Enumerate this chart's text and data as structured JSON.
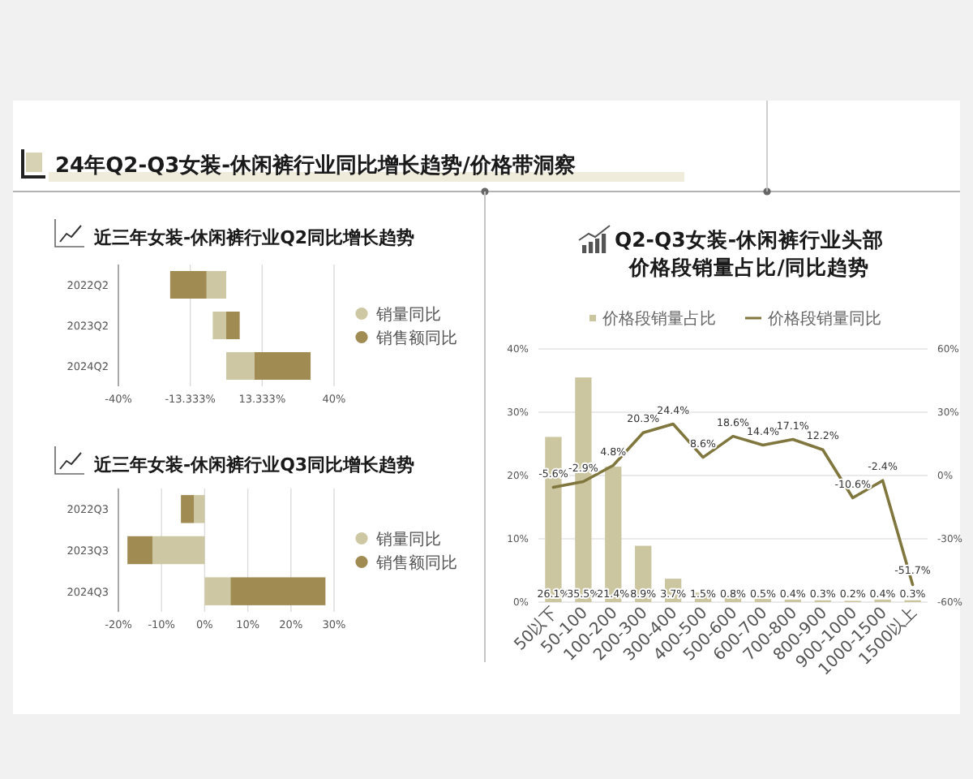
{
  "chart_data": [
    {
      "type": "other",
      "title": "24年Q2-Q3女装-休闲裤行业同比增长趋势/价格带洞察"
    },
    {
      "type": "bar",
      "orientation": "horizontal",
      "stacked": true,
      "title": "近三年女装-休闲裤行业Q2同比增长趋势",
      "categories": [
        "2022Q2",
        "2023Q2",
        "2024Q2"
      ],
      "series": [
        {
          "name": "销量同比",
          "color": "#cdc7a3",
          "values": [
            -7.3,
            -5.0,
            10.5
          ]
        },
        {
          "name": "销售额同比",
          "color": "#a08b53",
          "values": [
            -13.5,
            5.0,
            20.8
          ]
        }
      ],
      "xlim": [
        -40,
        40
      ],
      "xticks": [
        {
          "value": -40,
          "label": "-40%"
        },
        {
          "value": -13.333,
          "label": "-13.333%"
        },
        {
          "value": 13.333,
          "label": "13.333%"
        },
        {
          "value": 40,
          "label": "40%"
        }
      ],
      "grid": "x",
      "legend": "right"
    },
    {
      "type": "bar",
      "orientation": "horizontal",
      "stacked": true,
      "title": "近三年女装-休闲裤行业Q3同比增长趋势",
      "categories": [
        "2022Q3",
        "2023Q3",
        "2024Q3"
      ],
      "series": [
        {
          "name": "销量同比",
          "color": "#cdc7a3",
          "values": [
            -2.5,
            -12.1,
            6.0
          ]
        },
        {
          "name": "销售额同比",
          "color": "#a08b53",
          "values": [
            -3.0,
            -5.8,
            22.0
          ]
        }
      ],
      "xlim": [
        -20,
        30
      ],
      "xticks": [
        {
          "value": -20,
          "label": "-20%"
        },
        {
          "value": -10,
          "label": "-10%"
        },
        {
          "value": 0,
          "label": "0%"
        },
        {
          "value": 10,
          "label": "10%"
        },
        {
          "value": 20,
          "label": "20%"
        },
        {
          "value": 30,
          "label": "30%"
        }
      ],
      "grid": "x",
      "legend": "right"
    },
    {
      "type": "bar",
      "title": "Q2-Q3女装-休闲裤行业头部价格段销量占比/同比趋势",
      "categories": [
        "50以下",
        "50-100",
        "100-200",
        "200-300",
        "300-400",
        "400-500",
        "500-600",
        "600-700",
        "700-800",
        "800-900",
        "900-1000",
        "1000-1500",
        "1500以上"
      ],
      "series": [
        {
          "name": "价格段销量占比",
          "color": "#ccc6a0",
          "values": [
            26.1,
            35.5,
            21.4,
            8.9,
            3.7,
            1.5,
            0.8,
            0.5,
            0.4,
            0.3,
            0.2,
            0.4,
            0.3
          ],
          "value_labels": [
            "26.1%",
            "35.5%",
            "21.4%",
            "8.9%",
            "3.7%",
            "1.5%",
            "0.8%",
            "0.5%",
            "0.4%",
            "0.3%",
            "0.2%",
            "0.4%",
            "0.3%"
          ]
        },
        {
          "name": "价格段销量同比",
          "type": "line",
          "axis": "y2",
          "color": "#80773f",
          "values": [
            -5.6,
            -2.9,
            4.8,
            20.3,
            24.4,
            8.6,
            18.6,
            14.4,
            17.1,
            12.2,
            -10.6,
            -2.4,
            -51.7
          ],
          "value_labels": [
            "-5.6%",
            "-2.9%",
            "4.8%",
            "20.3%",
            "24.4%",
            "8.6%",
            "18.6%",
            "14.4%",
            "17.1%",
            "12.2%",
            "-10.6%",
            "-2.4%",
            "-51.7%"
          ]
        }
      ],
      "ylim": [
        0,
        40
      ],
      "yticks": [
        {
          "value": 0,
          "label": "0%"
        },
        {
          "value": 10,
          "label": "10%"
        },
        {
          "value": 20,
          "label": "20%"
        },
        {
          "value": 30,
          "label": "30%"
        },
        {
          "value": 40,
          "label": "40%"
        }
      ],
      "y2lim": [
        -60,
        60
      ],
      "y2ticks": [
        {
          "value": -60,
          "label": "-60%"
        },
        {
          "value": -30,
          "label": "-30%"
        },
        {
          "value": 0,
          "label": "0%"
        },
        {
          "value": 30,
          "label": "30%"
        },
        {
          "value": 60,
          "label": "60%"
        }
      ],
      "grid": "y",
      "legend": "top",
      "line_style": "solid"
    }
  ]
}
